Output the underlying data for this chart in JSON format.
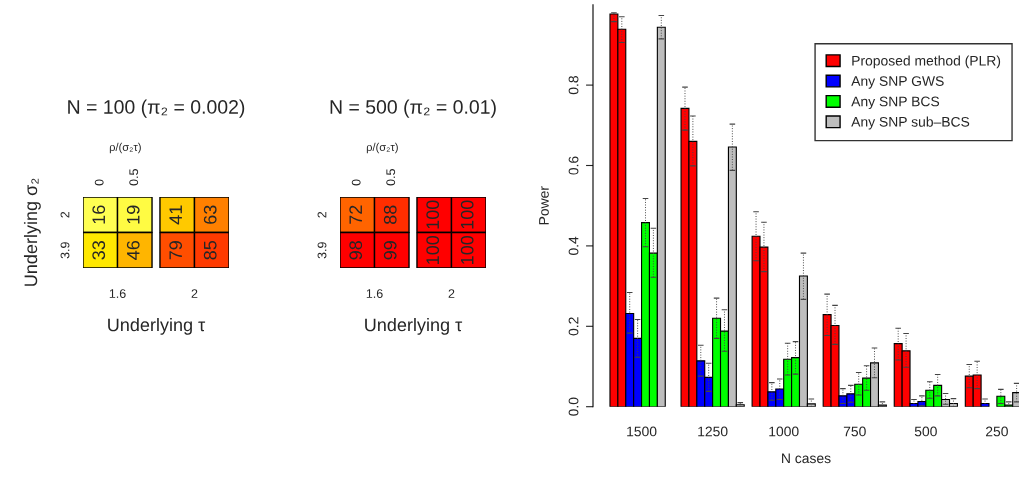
{
  "chart_data": [
    {
      "type": "heatmap",
      "title": "N = 100 (π₂ = 0.002)",
      "subtitle": "ρ/(σ₂τ)",
      "ylabel": "Underlying σ₂",
      "xlabel": "Underlying τ",
      "annotations": [
        "1.6",
        "2"
      ],
      "categories": [
        "0",
        "0.5",
        null,
        null
      ],
      "y_categories": [
        "2",
        "3.9"
      ],
      "cells": [
        [
          16,
          19,
          41,
          63
        ],
        [
          33,
          46,
          79,
          85
        ]
      ],
      "data_labels": true
    },
    {
      "type": "heatmap",
      "title": "N = 500 (π₂ = 0.01)",
      "subtitle": "ρ/(σ₂τ)",
      "xlabel": "Underlying τ",
      "annotations": [
        "1.6",
        "2"
      ],
      "categories": [
        "0",
        "0.5",
        null,
        null
      ],
      "y_categories": [
        "2",
        "3.9"
      ],
      "cells": [
        [
          72,
          88,
          100,
          100
        ],
        [
          98,
          99,
          100,
          100
        ]
      ],
      "data_labels": true
    },
    {
      "type": "bar",
      "xlabel": "N cases",
      "ylabel": "Power",
      "categories": [
        "1500",
        "1250",
        "1000",
        "750",
        "500",
        "250"
      ],
      "ylim": [
        0,
        1
      ],
      "yticks": [
        {
          "value": 0,
          "label": "0.0"
        },
        0.2,
        0.4,
        0.6,
        0.8
      ],
      "grid": false,
      "legend": "top right",
      "series": [
        {
          "name": "Proposed method (PLR)",
          "color": "#ff0000",
          "values": [
            0.977,
            0.742,
            0.424,
            0.229,
            0.157,
            0.076
          ],
          "errors": [
            [
              0.958,
              0.98
            ],
            [
              0.688,
              0.795
            ],
            [
              0.363,
              0.485
            ],
            [
              0.177,
              0.28
            ],
            [
              0.116,
              0.195
            ],
            [
              0.047,
              0.105
            ]
          ]
        },
        {
          "color": "#ff0000",
          "values": [
            0.939,
            0.66,
            0.397,
            0.202,
            0.139,
            0.079
          ],
          "errors": [
            [
              0.906,
              0.97
            ],
            [
              0.599,
              0.723
            ],
            [
              0.336,
              0.459
            ],
            [
              0.155,
              0.252
            ],
            [
              0.098,
              0.182
            ],
            [
              0.045,
              0.113
            ]
          ]
        },
        {
          "name": "Any SNP GWS",
          "color": "#0000ff",
          "values": [
            0.232,
            0.114,
            0.037,
            0.027,
            0.008,
            0.008
          ],
          "errors": [
            [
              0.183,
              0.284
            ],
            [
              0.076,
              0.153
            ],
            [
              0.016,
              0.06
            ],
            [
              0.008,
              0.045
            ],
            [
              0,
              0.018
            ],
            [
              0,
              0.019
            ]
          ]
        },
        {
          "color": "#0000ff",
          "values": [
            0.17,
            0.073,
            0.044,
            0.032,
            0.013,
            null
          ],
          "errors": [
            [
              0.123,
              0.217
            ],
            [
              0.038,
              0.108
            ],
            [
              0.018,
              0.069
            ],
            [
              0.011,
              0.053
            ],
            [
              0.002,
              0.027
            ],
            null
          ]
        },
        {
          "name": "Any SNP BCS",
          "color": "#00ff00",
          "values": [
            0.458,
            0.22,
            0.118,
            0.056,
            0.041,
            0.026
          ],
          "errors": [
            [
              0.398,
              0.518
            ],
            [
              0.17,
              0.27
            ],
            [
              0.079,
              0.158
            ],
            [
              0.029,
              0.085
            ],
            [
              0.021,
              0.062
            ],
            [
              0.008,
              0.043
            ]
          ]
        },
        {
          "color": "#00ff00",
          "values": [
            0.382,
            0.188,
            0.122,
            0.071,
            0.053,
            0.004
          ],
          "errors": [
            [
              0.322,
              0.444
            ],
            [
              0.138,
              0.241
            ],
            [
              0.081,
              0.162
            ],
            [
              0.041,
              0.102
            ],
            [
              0.027,
              0.08
            ],
            [
              0,
              0.012
            ]
          ]
        },
        {
          "name": "Any SNP sub‒BCS",
          "color": "#bebebe",
          "values": [
            0.944,
            0.646,
            0.325,
            0.109,
            0.018,
            0.035
          ],
          "errors": [
            [
              0.915,
              0.973
            ],
            [
              0.588,
              0.703
            ],
            [
              0.267,
              0.382
            ],
            [
              0.072,
              0.146
            ],
            [
              0.006,
              0.033
            ],
            [
              0.012,
              0.058
            ]
          ]
        },
        {
          "color": "#bebebe",
          "values": [
            null,
            0.005,
            0.007,
            0.004,
            0.008,
            null
          ],
          "errors": [
            null,
            [
              0,
              0.01
            ],
            [
              0,
              0.019
            ],
            [
              0,
              0.012
            ],
            [
              0,
              0.02
            ],
            null
          ]
        }
      ]
    }
  ]
}
